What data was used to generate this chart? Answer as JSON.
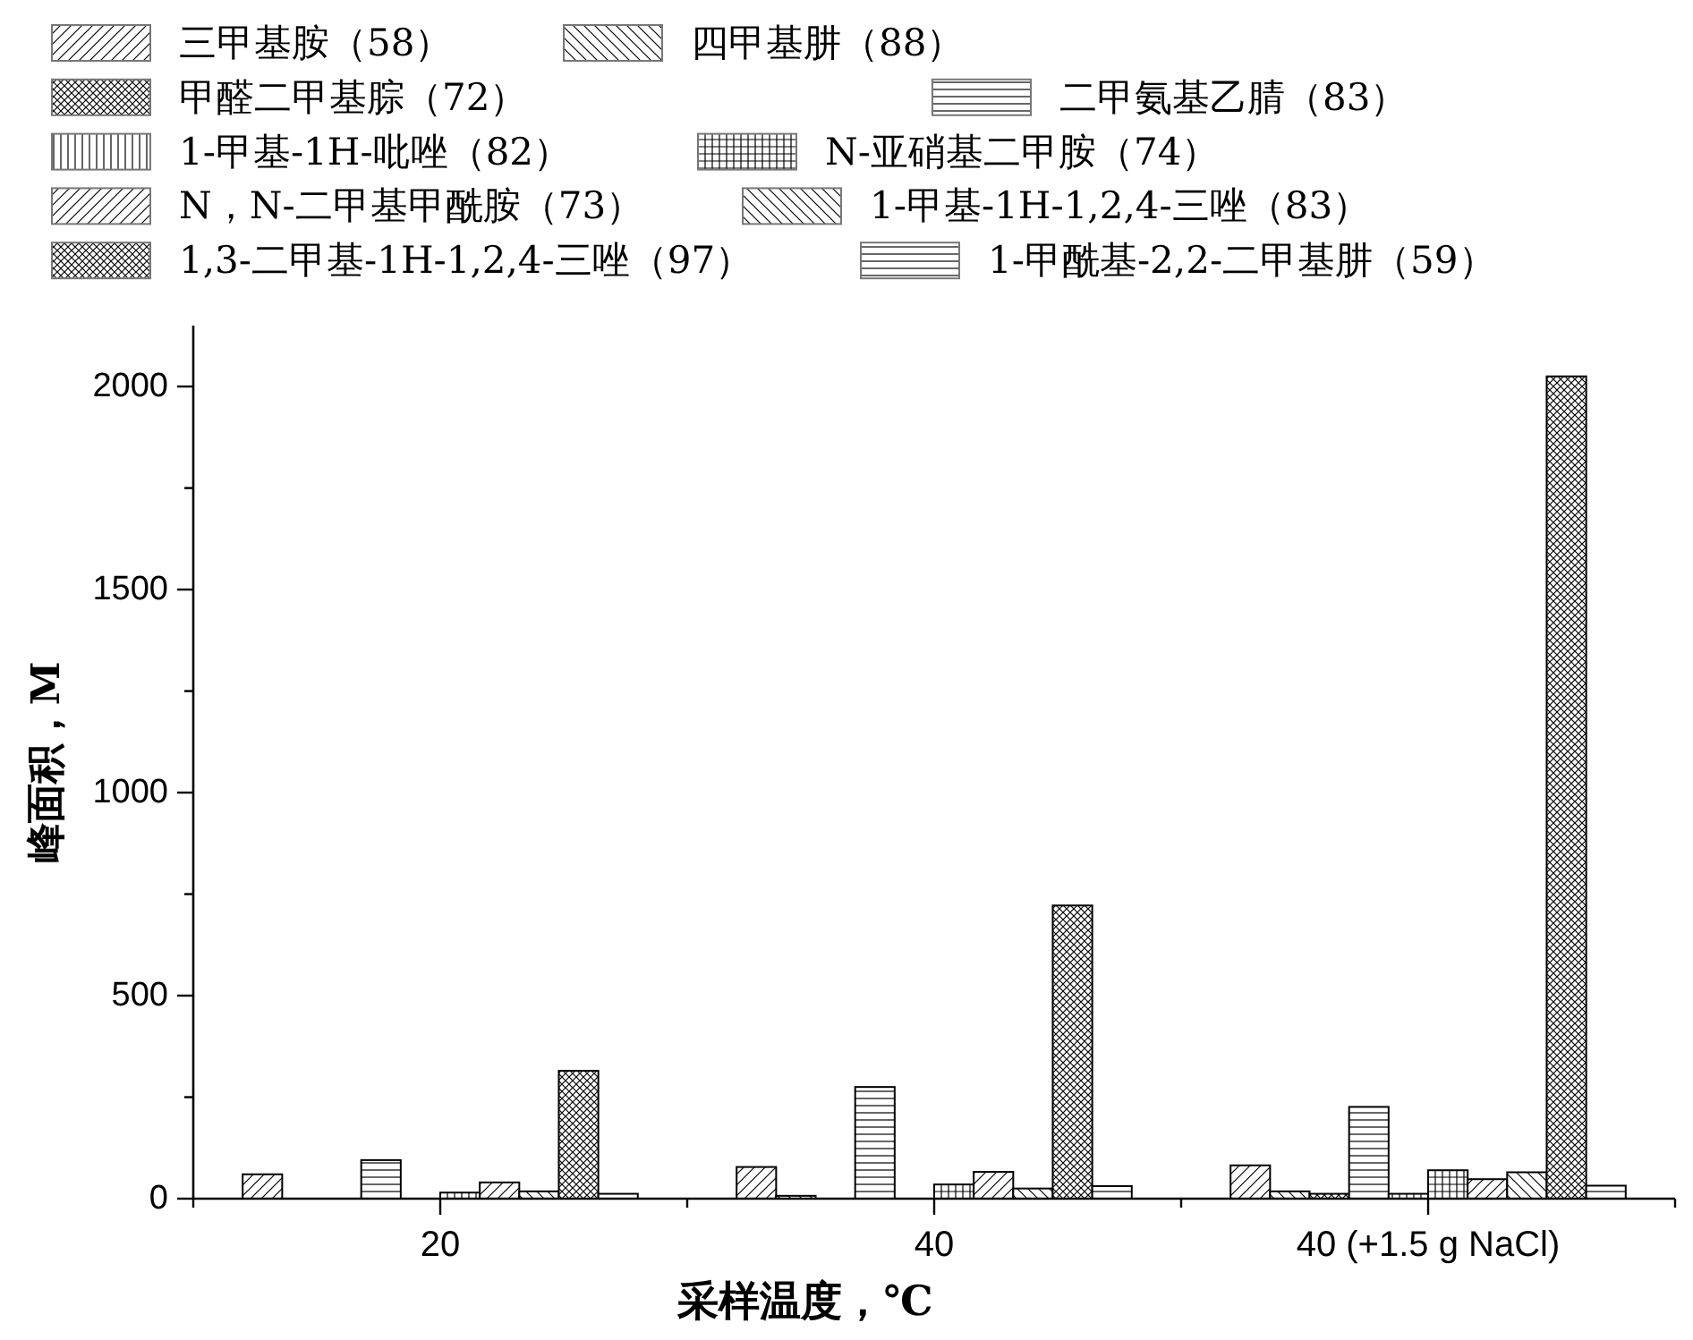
{
  "chart_data": {
    "type": "bar",
    "xlabel": "采样温度，℃",
    "ylabel": "峰面积，M",
    "categories": [
      "20",
      "40",
      "40 (+1.5 g NaCl)"
    ],
    "series": [
      {
        "name": "三甲基胺（58）",
        "color": "#000000",
        "values": [
          60,
          78,
          82
        ]
      },
      {
        "name": "四甲基肼（88）",
        "color": "#000000",
        "values": [
          null,
          7,
          18
        ]
      },
      {
        "name": "甲醛二甲基腙（72）",
        "color": "#000000",
        "values": [
          null,
          null,
          12
        ]
      },
      {
        "name": "二甲氨基乙腈（83）",
        "color": "#000000",
        "values": [
          95,
          275,
          226
        ]
      },
      {
        "name": "1-甲基-1H-吡唑（82）",
        "color": "#000000",
        "values": [
          null,
          null,
          12
        ]
      },
      {
        "name": "N-亚硝基二甲胺（74）",
        "color": "#000000",
        "values": [
          15,
          35,
          70
        ]
      },
      {
        "name": "N，N-二甲基甲酰胺（73）",
        "color": "#000000",
        "values": [
          40,
          66,
          48
        ]
      },
      {
        "name": "1-甲基-1H-1,2,4-三唑（83）",
        "color": "#000000",
        "values": [
          18,
          25,
          65
        ]
      },
      {
        "name": "1,3-二甲基-1H-1,2,4-三唑（97）",
        "color": "#000000",
        "values": [
          315,
          722,
          2025
        ]
      },
      {
        "name": "1-甲酰基-2,2-二甲基肼（59）",
        "color": "#000000",
        "values": [
          12,
          31,
          32
        ]
      }
    ],
    "ylim": [
      0,
      2150
    ],
    "yticks": [
      0,
      {
        "value": 250,
        "label": null
      },
      500,
      {
        "value": 750,
        "label": null
      },
      1000,
      {
        "value": 1250,
        "label": null
      },
      1500,
      {
        "value": 1750,
        "label": null
      },
      2000
    ],
    "legend": "top"
  }
}
